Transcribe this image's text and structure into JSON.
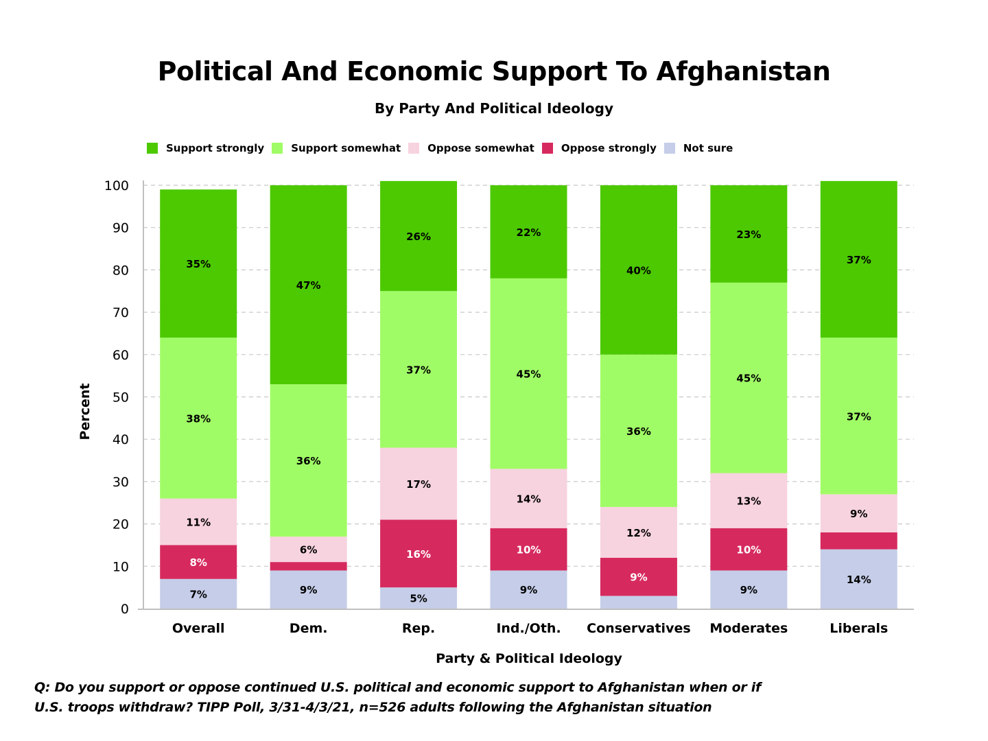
{
  "chart_data": {
    "type": "bar",
    "stacked": true,
    "title": "Political And Economic Support To Afghanistan",
    "subtitle": "By Party And Political Ideology",
    "xlabel": "Party & Political Ideology",
    "ylabel": "Percent",
    "ylim": [
      0,
      100
    ],
    "yticks": [
      0,
      10,
      20,
      30,
      40,
      50,
      60,
      70,
      80,
      90,
      100
    ],
    "grid": true,
    "legend_position": "top-left",
    "categories": [
      "Overall",
      "Dem.",
      "Rep.",
      "Ind./Oth.",
      "Conservatives",
      "Moderates",
      "Liberals"
    ],
    "series": [
      {
        "name": "Not sure",
        "color": "#c5cde8",
        "label_color": "#000000",
        "values": [
          7,
          9,
          5,
          9,
          3,
          9,
          14
        ],
        "labels": [
          "7%",
          "9%",
          "5%",
          "9%",
          "",
          "9%",
          "14%"
        ]
      },
      {
        "name": "Oppose strongly",
        "color": "#d62a5f",
        "label_color": "#ffffff",
        "values": [
          8,
          2,
          16,
          10,
          9,
          10,
          4
        ],
        "labels": [
          "8%",
          "",
          "16%",
          "10%",
          "9%",
          "10%",
          ""
        ]
      },
      {
        "name": "Oppose somewhat",
        "color": "#f7d3df",
        "label_color": "#000000",
        "values": [
          11,
          6,
          17,
          14,
          12,
          13,
          9
        ],
        "labels": [
          "11%",
          "6%",
          "17%",
          "14%",
          "12%",
          "13%",
          "9%"
        ]
      },
      {
        "name": "Support somewhat",
        "color": "#a0fc66",
        "label_color": "#000000",
        "values": [
          38,
          36,
          37,
          45,
          36,
          45,
          37
        ],
        "labels": [
          "38%",
          "36%",
          "37%",
          "45%",
          "36%",
          "45%",
          "37%"
        ]
      },
      {
        "name": "Support strongly",
        "color": "#4cc901",
        "label_color": "#000000",
        "values": [
          35,
          47,
          26,
          22,
          40,
          23,
          37
        ],
        "labels": [
          "35%",
          "47%",
          "26%",
          "22%",
          "40%",
          "23%",
          "37%"
        ]
      }
    ],
    "legend_order": [
      "Support strongly",
      "Support somewhat",
      "Oppose somewhat",
      "Oppose strongly",
      "Not sure"
    ]
  },
  "legend": [
    {
      "label": "Support strongly",
      "color": "#4cc901"
    },
    {
      "label": "Support somewhat",
      "color": "#a0fc66"
    },
    {
      "label": "Oppose somewhat",
      "color": "#f7d3df"
    },
    {
      "label": "Oppose strongly",
      "color": "#d62a5f"
    },
    {
      "label": "Not sure",
      "color": "#c5cde8"
    }
  ],
  "footer": {
    "line1": "Q:  Do you support or oppose continued U.S. political and economic support to Afghanistan when or if",
    "line2": "U.S. troops withdraw?  TIPP Poll, 3/31-4/3/21, n=526 adults following the Afghanistan situation"
  }
}
